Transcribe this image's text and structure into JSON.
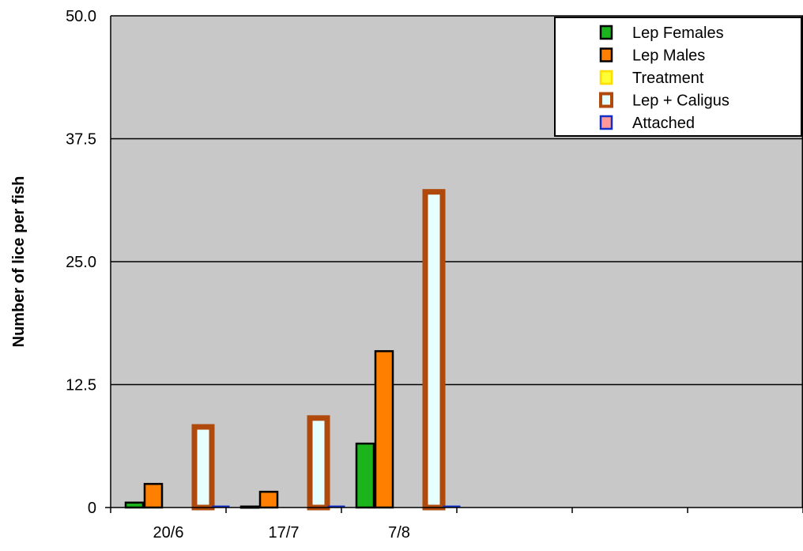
{
  "chart_data": {
    "type": "bar",
    "title": "",
    "xlabel": "",
    "ylabel": "Number of lice per fish",
    "ylim": [
      0,
      50
    ],
    "yticks": [
      "0",
      "12.5",
      "25.0",
      "37.5",
      "50.0"
    ],
    "categories": [
      "20/6",
      "17/7",
      "7/8",
      "",
      "",
      ""
    ],
    "grid": "horizontal",
    "legend_position": "top-right",
    "background_color": "#c8c8c8",
    "series": [
      {
        "name": "Lep Females",
        "values": [
          0.5,
          0.1,
          6.5,
          null,
          null,
          null
        ],
        "fill": "#1cb41c",
        "stroke": "#000000"
      },
      {
        "name": "Lep Males",
        "values": [
          2.4,
          1.6,
          15.9,
          null,
          null,
          null
        ],
        "fill": "#ff7f00",
        "stroke": "#000000"
      },
      {
        "name": "Treatment",
        "values": [
          null,
          null,
          null,
          null,
          null,
          null
        ],
        "fill": "#ffff33",
        "stroke": "#ffdd00"
      },
      {
        "name": "Lep + Caligus",
        "values": [
          8.2,
          9.1,
          32.1,
          null,
          null,
          null
        ],
        "fill": "#e6ffff",
        "stroke": "#b04a0c"
      },
      {
        "name": "Attached",
        "values": [
          0.15,
          0.2,
          0.1,
          null,
          null,
          null
        ],
        "fill": "#ff9999",
        "stroke": "#1030cc"
      }
    ]
  }
}
